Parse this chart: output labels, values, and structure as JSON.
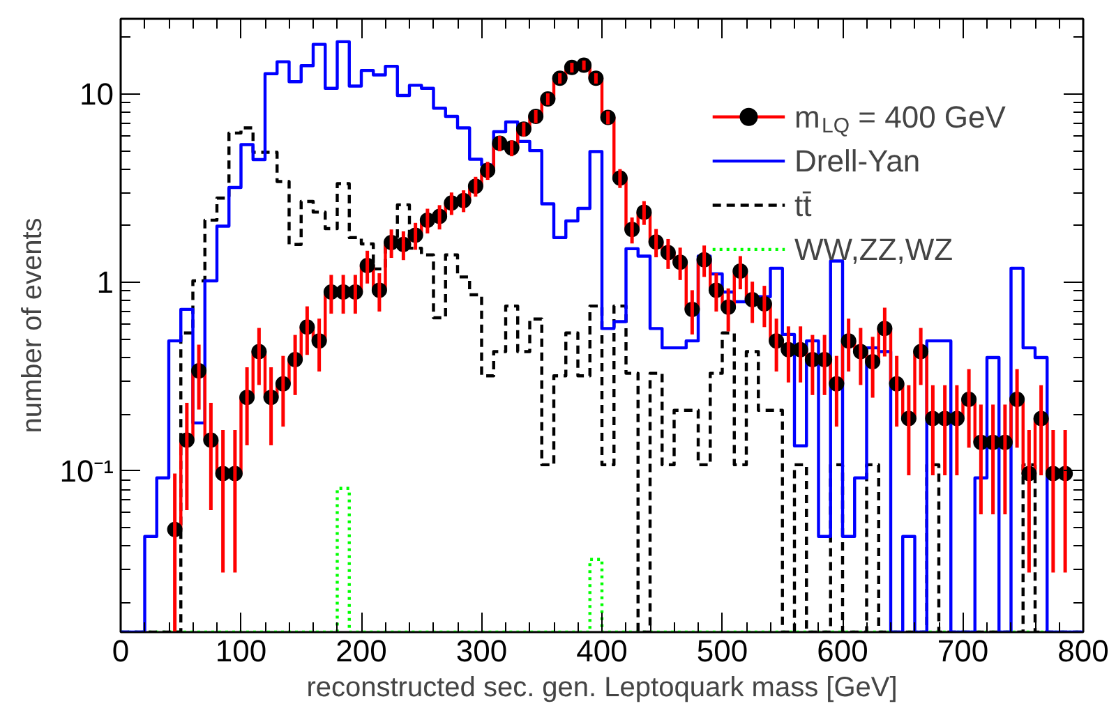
{
  "chart_data": {
    "type": "histogram",
    "xlabel": "reconstructed sec. gen. Leptoquark mass [GeV]",
    "ylabel": "number of events",
    "bins": [
      0,
      10,
      20,
      30,
      40,
      50,
      60,
      70,
      80,
      90,
      100,
      110,
      120,
      130,
      140,
      150,
      160,
      170,
      180,
      190,
      200,
      210,
      220,
      230,
      240,
      250,
      260,
      270,
      280,
      290,
      300,
      310,
      320,
      330,
      340,
      350,
      360,
      370,
      380,
      390,
      400,
      410,
      420,
      430,
      440,
      450,
      460,
      470,
      480,
      490,
      500,
      510,
      520,
      530,
      540,
      550,
      560,
      570,
      580,
      590,
      600,
      610,
      620,
      630,
      640,
      650,
      660,
      670,
      680,
      690,
      700,
      710,
      720,
      730,
      740,
      750,
      760,
      770,
      780,
      790,
      800
    ],
    "xlim": [
      0,
      800
    ],
    "xticks": [
      0,
      100,
      200,
      300,
      400,
      500,
      600,
      700,
      800
    ],
    "ylim": [
      0.014,
      25
    ],
    "yticks": [
      {
        "value": 0.1,
        "label": "10⁻¹"
      },
      1,
      10
    ],
    "log": "y",
    "grid": false,
    "legend": "top right",
    "series": [
      {
        "name": "m$_{LQ}$ = 400 GeV",
        "type": "step",
        "color": "#ff0000",
        "marker": "circle",
        "line_style": "solid",
        "x": [
          45,
          55,
          65,
          75,
          85,
          95,
          105,
          115,
          125,
          135,
          145,
          155,
          165,
          175,
          185,
          195,
          205,
          215,
          225,
          235,
          245,
          255,
          265,
          275,
          285,
          295,
          305,
          315,
          325,
          335,
          345,
          355,
          365,
          375,
          385,
          395,
          405,
          415,
          425,
          435,
          445,
          455,
          465,
          475,
          485,
          495,
          505,
          515,
          525,
          535,
          545,
          555,
          565,
          575,
          585,
          595,
          605,
          615,
          625,
          635,
          645,
          655,
          665,
          675,
          685,
          695,
          705,
          715,
          725,
          735,
          745,
          755,
          765,
          775,
          785
        ],
        "values": [
          0.049,
          0.146,
          0.34,
          0.146,
          0.097,
          0.097,
          0.246,
          0.43,
          0.246,
          0.29,
          0.39,
          0.58,
          0.49,
          0.89,
          0.89,
          0.89,
          1.23,
          0.91,
          1.63,
          1.59,
          1.78,
          2.14,
          2.24,
          2.64,
          2.72,
          3.24,
          3.93,
          5.47,
          5.17,
          6.5,
          7.6,
          9.4,
          12.1,
          13.8,
          14.2,
          12.1,
          7.5,
          3.58,
          1.91,
          2.36,
          1.64,
          1.44,
          1.28,
          0.72,
          1.32,
          0.91,
          0.74,
          1.15,
          0.81,
          0.77,
          0.49,
          0.44,
          0.44,
          0.39,
          0.39,
          0.29,
          0.49,
          0.43,
          0.38,
          0.57,
          0.29,
          0.19,
          0.43,
          0.19,
          0.19,
          0.19,
          0.24,
          0.142,
          0.142,
          0.142,
          0.24,
          0.097,
          0.19,
          0.097,
          0.097
        ],
        "errors": [
          [
            0.014,
            0.097
          ],
          0.084,
          0.128,
          0.084,
          0.068,
          0.068,
          0.109,
          0.144,
          0.109,
          0.118,
          0.137,
          0.167,
          0.153,
          0.207,
          0.207,
          0.207,
          0.243,
          0.209,
          0.28,
          0.276,
          0.29,
          0.32,
          0.33,
          0.36,
          0.36,
          0.39,
          0.43,
          0.51,
          0.5,
          0.56,
          0.6,
          0.67,
          0.76,
          0.81,
          0.83,
          0.76,
          0.6,
          0.41,
          0.3,
          0.34,
          0.28,
          0.26,
          0.25,
          0.19,
          0.25,
          0.209,
          0.19,
          0.23,
          0.2,
          0.19,
          0.153,
          0.145,
          0.145,
          0.137,
          0.137,
          0.118,
          0.153,
          0.144,
          0.135,
          0.165,
          0.118,
          0.095,
          0.144,
          0.095,
          0.095,
          0.095,
          0.107,
          0.083,
          0.083,
          0.083,
          0.107,
          0.068,
          0.095,
          0.068,
          0.068
        ]
      },
      {
        "name": "Drell-Yan",
        "color": "#0000ff",
        "line_style": "solid",
        "values": [
          null,
          null,
          0.045,
          0.092,
          0.49,
          0.72,
          0.18,
          1.02,
          1.99,
          3.19,
          5.38,
          4.48,
          12.8,
          14.8,
          11.6,
          14.1,
          18.3,
          10.7,
          18.9,
          11.0,
          13.3,
          12.6,
          14.0,
          9.8,
          11.1,
          10.7,
          8.4,
          7.6,
          6.6,
          4.5,
          4.2,
          6.3,
          7.1,
          5.6,
          5.0,
          2.61,
          1.73,
          2.12,
          2.47,
          4.94,
          0.57,
          0.62,
          1.51,
          1.38,
          0.57,
          0.45,
          0.45,
          0.49,
          1.38,
          1.11,
          0.89,
          0.79,
          0.84,
          0.84,
          1.19,
          0.53,
          0.136,
          0.49,
          0.045,
          1.3,
          0.045,
          0.092,
          0.45,
          0.43,
          null,
          0.045,
          null,
          0.49,
          0.49,
          null,
          null,
          0.092,
          0.4,
          null,
          1.19,
          0.45,
          0.4,
          null,
          null,
          null
        ]
      },
      {
        "name": "tt̄",
        "color": "#000000",
        "line_style": "dashed",
        "values": [
          null,
          null,
          null,
          null,
          null,
          0.54,
          1.02,
          2.14,
          2.8,
          6.2,
          6.6,
          4.9,
          4.9,
          3.43,
          1.59,
          2.69,
          2.36,
          1.93,
          3.34,
          1.73,
          1.6,
          1.18,
          1.58,
          2.58,
          1.52,
          1.4,
          0.65,
          1.4,
          1.07,
          0.86,
          0.32,
          0.43,
          0.75,
          0.43,
          0.64,
          0.108,
          0.32,
          0.54,
          0.32,
          0.75,
          0.108,
          0.75,
          0.33,
          null,
          0.33,
          0.108,
          0.21,
          0.21,
          0.108,
          0.33,
          0.54,
          0.108,
          0.43,
          0.21,
          0.21,
          null,
          0.108,
          null,
          null,
          0.108,
          null,
          null,
          0.108,
          null,
          null,
          null,
          null,
          0.108,
          null,
          null,
          null,
          null,
          null,
          null,
          null,
          0.108,
          null,
          null,
          null,
          null
        ]
      },
      {
        "name": "WW,ZZ,WZ",
        "color": "#00ff00",
        "line_style": "dotted",
        "values": [
          null,
          null,
          null,
          null,
          null,
          null,
          null,
          null,
          null,
          null,
          null,
          null,
          null,
          null,
          null,
          null,
          null,
          null,
          0.081,
          null,
          null,
          null,
          null,
          null,
          null,
          null,
          null,
          null,
          null,
          null,
          null,
          null,
          null,
          null,
          null,
          null,
          null,
          null,
          null,
          0.034,
          null,
          null,
          null,
          null,
          null,
          null,
          null,
          null,
          null,
          null,
          null,
          null,
          null,
          null,
          null,
          null,
          null,
          null,
          null,
          null,
          null,
          null,
          null,
          null,
          null,
          null,
          null,
          null,
          null,
          null,
          null,
          null,
          null,
          null,
          null,
          null,
          null,
          null,
          null,
          null
        ]
      }
    ]
  }
}
